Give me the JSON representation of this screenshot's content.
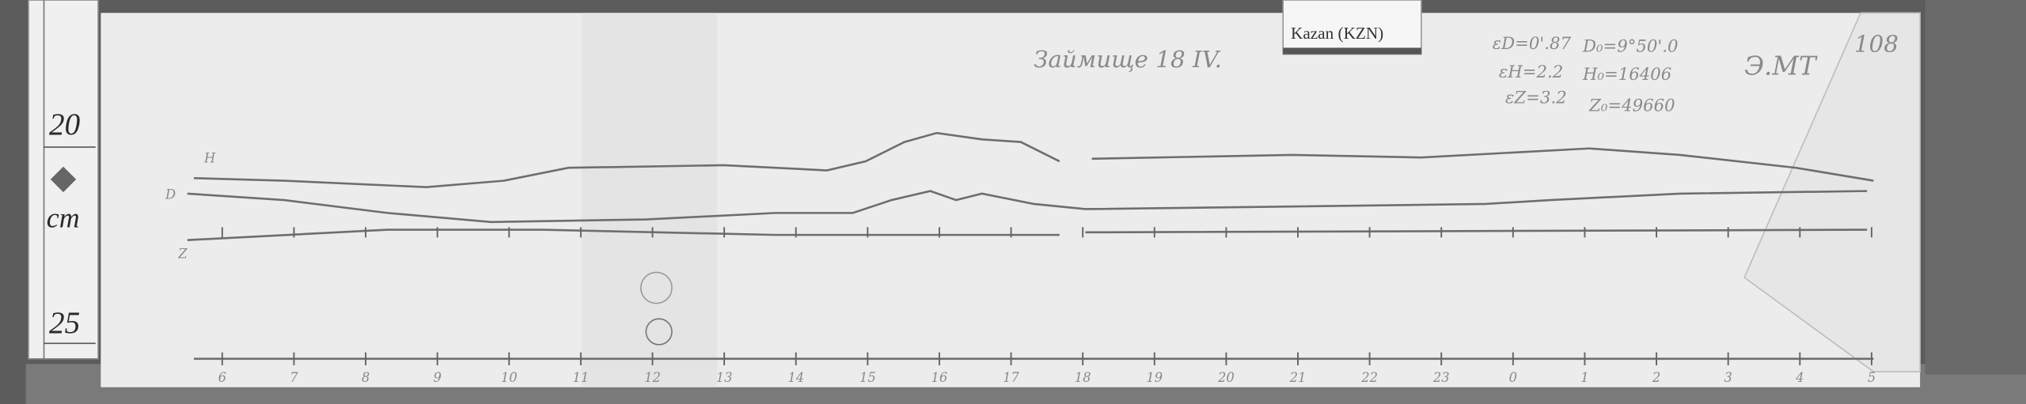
{
  "ruler": {
    "top_mark": "20",
    "unit": "cm",
    "bottom_mark": "25"
  },
  "label": {
    "station": "Kazan (KZN)"
  },
  "header": {
    "title": "Займище 18 IV.",
    "sheet_number": "108",
    "initials": "Э.МТ"
  },
  "constants": {
    "eps_d": "εD=0'.87",
    "d0": "D₀=9°50'.0",
    "eps_h": "εH=2.2",
    "h0": "H₀=16406",
    "eps_z": "εZ=3.2",
    "z0": "Z₀=49660"
  },
  "traces": {
    "h_label": "H",
    "d_label": "D",
    "z_label": "Z"
  },
  "hours": [
    "6",
    "7",
    "8",
    "9",
    "10",
    "11",
    "12",
    "13",
    "14",
    "15",
    "16",
    "17",
    "18",
    "19",
    "20",
    "21",
    "22",
    "23",
    "0",
    "1",
    "2",
    "3",
    "4",
    "5"
  ],
  "colors": {
    "paper": "#ececec",
    "wood": "#5c5c5c",
    "ink": "#6e6e6e"
  }
}
